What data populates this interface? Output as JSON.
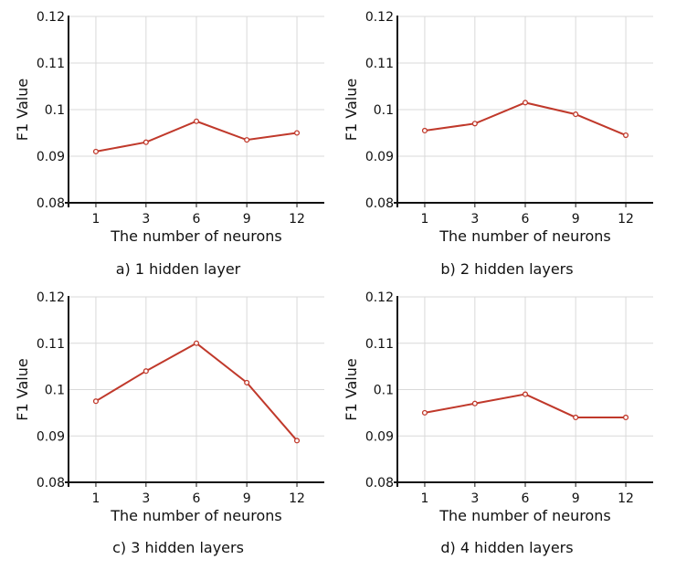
{
  "series_color": "#c0392b",
  "chart_data": [
    {
      "type": "line",
      "caption": "a) 1 hidden layer",
      "xlabel": "The number of neurons",
      "ylabel": "F1 Value",
      "categories": [
        "1",
        "3",
        "6",
        "9",
        "12"
      ],
      "ylim": [
        0.08,
        0.12
      ],
      "yticks": [
        "0.08",
        "0.09",
        "0.1",
        "0.11",
        "0.12"
      ],
      "grid": true,
      "series": [
        {
          "values": [
            0.091,
            0.093,
            0.0975,
            0.0935,
            0.095
          ]
        }
      ]
    },
    {
      "type": "line",
      "caption": "b) 2 hidden layers",
      "xlabel": "The number of neurons",
      "ylabel": "F1 Value",
      "categories": [
        "1",
        "3",
        "6",
        "9",
        "12"
      ],
      "ylim": [
        0.08,
        0.12
      ],
      "yticks": [
        "0.08",
        "0.09",
        "0.1",
        "0.11",
        "0.12"
      ],
      "grid": true,
      "series": [
        {
          "values": [
            0.0955,
            0.097,
            0.1015,
            0.099,
            0.0945
          ]
        }
      ]
    },
    {
      "type": "line",
      "caption": "c) 3 hidden layers",
      "xlabel": "The number of neurons",
      "ylabel": "F1 Value",
      "categories": [
        "1",
        "3",
        "6",
        "9",
        "12"
      ],
      "ylim": [
        0.08,
        0.12
      ],
      "yticks": [
        "0.08",
        "0.09",
        "0.1",
        "0.11",
        "0.12"
      ],
      "grid": true,
      "series": [
        {
          "values": [
            0.0975,
            0.104,
            0.11,
            0.1015,
            0.089
          ]
        }
      ]
    },
    {
      "type": "line",
      "caption": "d) 4 hidden layers",
      "xlabel": "The number of neurons",
      "ylabel": "F1 Value",
      "categories": [
        "1",
        "3",
        "6",
        "9",
        "12"
      ],
      "ylim": [
        0.08,
        0.12
      ],
      "yticks": [
        "0.08",
        "0.09",
        "0.1",
        "0.11",
        "0.12"
      ],
      "grid": true,
      "series": [
        {
          "values": [
            0.095,
            0.097,
            0.099,
            0.094,
            0.094
          ]
        }
      ]
    }
  ]
}
